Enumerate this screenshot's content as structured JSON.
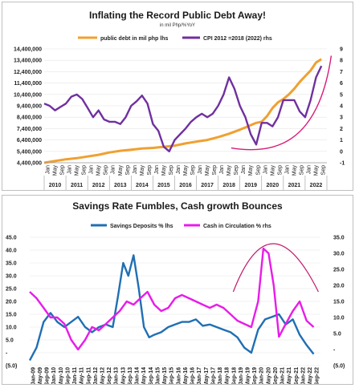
{
  "chart_data": [
    {
      "type": "line",
      "title": "Inflating the Record Public Debt Away!",
      "subtitle": "in mil Php/%YoY",
      "xlabel": "",
      "ylabel": "",
      "x_tick_labels": [
        "Jan",
        "May",
        "Sep",
        "Jan",
        "May",
        "Sep",
        "Jan",
        "May",
        "Sep",
        "Jan",
        "May",
        "Sep",
        "Jan",
        "May",
        "Sep",
        "Jan",
        "May",
        "Sep",
        "Jan",
        "May",
        "Sep",
        "Jan",
        "May",
        "Sep",
        "Jan",
        "May",
        "Sep",
        "Jan",
        "May",
        "Sep",
        "Jan",
        "May",
        "Sep",
        "Jan",
        "May",
        "Sep",
        "Jan",
        "May",
        "Sep"
      ],
      "year_labels": [
        "2010",
        "2011",
        "2012",
        "2013",
        "2014",
        "2015",
        "2016",
        "2017",
        "2018",
        "2019",
        "2020",
        "2021",
        "2022"
      ],
      "y_left_tick_labels": [
        "4,400,000",
        "5,400,000",
        "6,400,000",
        "7,400,000",
        "8,400,000",
        "9,400,000",
        "10,400,000",
        "11,400,000",
        "12,400,000",
        "13,400,000",
        "14,400,000"
      ],
      "y_right_tick_labels": [
        "-1",
        "0",
        "1",
        "2",
        "3",
        "4",
        "5",
        "6",
        "7",
        "8",
        "9"
      ],
      "ylim_left": [
        4400000,
        14400000
      ],
      "ylim_right": [
        -1,
        9
      ],
      "legend_position": "top",
      "series": [
        {
          "name": "public debt in mil php lhs",
          "axis": "left",
          "color": "#f0a030",
          "x": [
            2010.0,
            2010.5,
            2011.0,
            2011.5,
            2012.0,
            2012.5,
            2013.0,
            2013.5,
            2014.0,
            2014.5,
            2015.0,
            2015.5,
            2016.0,
            2016.5,
            2017.0,
            2017.5,
            2018.0,
            2018.5,
            2019.0,
            2019.25,
            2019.5,
            2019.75,
            2020.0,
            2020.25,
            2020.5,
            2020.75,
            2021.0,
            2021.25,
            2021.5,
            2021.75,
            2022.0,
            2022.25,
            2022.5,
            2022.75
          ],
          "values": [
            4400000,
            4550000,
            4700000,
            4800000,
            4950000,
            5100000,
            5300000,
            5450000,
            5550000,
            5650000,
            5700000,
            5800000,
            5900000,
            6100000,
            6250000,
            6400000,
            6650000,
            6950000,
            7300000,
            7500000,
            7700000,
            7900000,
            8000000,
            8500000,
            9200000,
            9700000,
            10000000,
            10400000,
            10900000,
            11500000,
            12000000,
            12500000,
            13200000,
            13500000
          ]
        },
        {
          "name": "CPI 2012 =2018 (2022) rhs",
          "axis": "right",
          "color": "#7030a0",
          "x": [
            2010.0,
            2010.25,
            2010.5,
            2010.75,
            2011.0,
            2011.25,
            2011.5,
            2011.75,
            2012.0,
            2012.25,
            2012.5,
            2012.75,
            2013.0,
            2013.25,
            2013.5,
            2013.75,
            2014.0,
            2014.25,
            2014.5,
            2014.75,
            2015.0,
            2015.25,
            2015.5,
            2015.75,
            2016.0,
            2016.25,
            2016.5,
            2016.75,
            2017.0,
            2017.25,
            2017.5,
            2017.75,
            2018.0,
            2018.25,
            2018.5,
            2018.75,
            2019.0,
            2019.25,
            2019.5,
            2019.75,
            2020.0,
            2020.25,
            2020.5,
            2020.75,
            2021.0,
            2021.25,
            2021.5,
            2021.75,
            2022.0,
            2022.25,
            2022.5,
            2022.75
          ],
          "values": [
            4.2,
            4.0,
            3.6,
            3.9,
            4.2,
            4.8,
            5.0,
            4.6,
            3.8,
            3.0,
            3.6,
            2.8,
            2.6,
            2.6,
            2.4,
            3.0,
            4.0,
            4.4,
            4.9,
            4.2,
            2.4,
            1.8,
            0.4,
            0.0,
            1.0,
            1.5,
            2.0,
            2.6,
            3.0,
            3.3,
            3.0,
            3.3,
            4.0,
            5.0,
            6.5,
            5.5,
            4.0,
            3.0,
            1.5,
            0.6,
            2.5,
            2.5,
            2.2,
            3.0,
            4.5,
            4.5,
            4.5,
            3.5,
            3.0,
            4.5,
            6.5,
            7.5
          ]
        }
      ],
      "annotations": [
        "trend-curve"
      ]
    },
    {
      "type": "line",
      "title": "Savings Rate Fumbles, Cash growth Bounces",
      "xlabel": "",
      "ylabel": "",
      "x_tick_labels": [
        "Jan-09",
        "May-09",
        "Sep-09",
        "Jan-10",
        "May-10",
        "Sep-10",
        "Jan-11",
        "May-11",
        "Sep-11",
        "Jan-12",
        "May-12",
        "Sep-12",
        "Jan-13",
        "May-13",
        "Sep-13",
        "Jan-14",
        "May-14",
        "Sep-14",
        "Jan-15",
        "May-15",
        "Sep-15",
        "Jan-16",
        "May-16",
        "Sep-16",
        "Jan-17",
        "May-17",
        "Sep-17",
        "Jan-18",
        "May-18",
        "Sep-18",
        "Jan-19",
        "May-19",
        "Sep-19",
        "Jan-20",
        "May-20",
        "Sep-20",
        "Jan-21",
        "May-21",
        "Sep-21",
        "Jan-22",
        "May-22",
        "Sep-22"
      ],
      "y_left_tick_labels": [
        "(5.0)",
        "-",
        "5.0",
        "10.0",
        "15.0",
        "20.0",
        "25.0",
        "30.0",
        "35.0",
        "40.0",
        "45.0"
      ],
      "y_right_tick_labels": [
        "(5.0)",
        "-",
        "5.0",
        "10.0",
        "15.0",
        "20.0",
        "25.0",
        "30.0",
        "35.0"
      ],
      "ylim_left": [
        -5,
        45
      ],
      "ylim_right": [
        -5,
        35
      ],
      "legend_position": "top",
      "series": [
        {
          "name": "Savings Deposits % lhs",
          "axis": "left",
          "color": "#1f6fb4",
          "x": [
            2009.0,
            2009.33,
            2009.67,
            2010.0,
            2010.33,
            2010.67,
            2011.0,
            2011.33,
            2011.67,
            2012.0,
            2012.33,
            2012.67,
            2013.0,
            2013.25,
            2013.5,
            2013.75,
            2014.0,
            2014.25,
            2014.5,
            2014.75,
            2015.0,
            2015.33,
            2015.67,
            2016.0,
            2016.33,
            2016.67,
            2017.0,
            2017.33,
            2017.67,
            2018.0,
            2018.33,
            2018.67,
            2019.0,
            2019.33,
            2019.67,
            2020.0,
            2020.33,
            2020.67,
            2021.0,
            2021.33,
            2021.67,
            2022.0,
            2022.33,
            2022.67
          ],
          "values": [
            -3.0,
            2.0,
            12.0,
            15.5,
            12.0,
            10.0,
            12.0,
            14.0,
            10.0,
            8.0,
            10.0,
            11.0,
            10.0,
            22.0,
            35.0,
            30.0,
            38.0,
            25.0,
            10.0,
            6.0,
            7.0,
            8.0,
            10.0,
            11.0,
            12.0,
            12.0,
            13.0,
            10.5,
            11.0,
            10.0,
            9.0,
            8.0,
            6.0,
            2.0,
            0.0,
            9.0,
            13.0,
            14.0,
            15.0,
            11.0,
            13.0,
            7.0,
            3.0,
            -0.5
          ]
        },
        {
          "name": "Cash in Circulation % rhs",
          "axis": "right",
          "color": "#e81ce8",
          "x": [
            2009.0,
            2009.33,
            2009.67,
            2010.0,
            2010.33,
            2010.67,
            2011.0,
            2011.33,
            2011.67,
            2012.0,
            2012.33,
            2012.67,
            2013.0,
            2013.33,
            2013.67,
            2014.0,
            2014.33,
            2014.67,
            2015.0,
            2015.33,
            2015.67,
            2016.0,
            2016.33,
            2016.67,
            2017.0,
            2017.33,
            2017.67,
            2018.0,
            2018.33,
            2018.67,
            2019.0,
            2019.33,
            2019.67,
            2020.0,
            2020.25,
            2020.5,
            2020.75,
            2021.0,
            2021.33,
            2021.67,
            2022.0,
            2022.33,
            2022.67
          ],
          "values": [
            18.0,
            16.0,
            13.0,
            10.0,
            10.0,
            8.0,
            3.0,
            0.0,
            3.0,
            7.0,
            6.0,
            8.0,
            10.0,
            12.0,
            15.0,
            14.0,
            16.0,
            18.0,
            14.0,
            12.0,
            13.0,
            16.0,
            17.0,
            16.0,
            15.0,
            14.0,
            13.0,
            14.0,
            13.0,
            11.0,
            9.0,
            8.0,
            7.0,
            15.0,
            31.5,
            30.0,
            20.0,
            4.0,
            8.0,
            12.0,
            15.0,
            9.0,
            7.0
          ]
        }
      ],
      "annotations": [
        "arc"
      ]
    }
  ]
}
